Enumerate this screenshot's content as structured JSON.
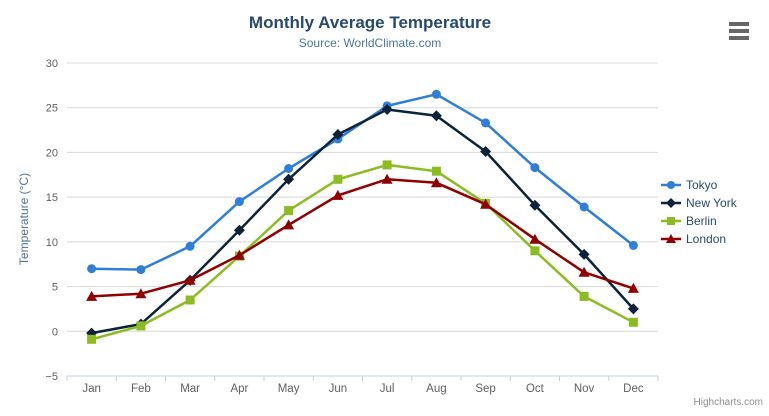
{
  "chart_data": {
    "type": "line",
    "title": "Monthly Average Temperature",
    "subtitle": "Source: WorldClimate.com",
    "xlabel": "",
    "ylabel": "Temperature (°C)",
    "categories": [
      "Jan",
      "Feb",
      "Mar",
      "Apr",
      "May",
      "Jun",
      "Jul",
      "Aug",
      "Sep",
      "Oct",
      "Nov",
      "Dec"
    ],
    "ylim": [
      -5,
      30
    ],
    "yticks": [
      -5,
      0,
      5,
      10,
      15,
      20,
      25,
      30
    ],
    "grid": true,
    "legend_position": "right",
    "series": [
      {
        "name": "Tokyo",
        "color": "#2f7ed8",
        "marker": "circle",
        "values": [
          7.0,
          6.9,
          9.5,
          14.5,
          18.2,
          21.5,
          25.2,
          26.5,
          23.3,
          18.3,
          13.9,
          9.6
        ]
      },
      {
        "name": "New York",
        "color": "#0d233a",
        "marker": "diamond",
        "values": [
          -0.2,
          0.8,
          5.7,
          11.3,
          17.0,
          22.0,
          24.8,
          24.1,
          20.1,
          14.1,
          8.6,
          2.5
        ]
      },
      {
        "name": "Berlin",
        "color": "#8bbc21",
        "marker": "square",
        "values": [
          -0.9,
          0.6,
          3.5,
          8.4,
          13.5,
          17.0,
          18.6,
          17.9,
          14.3,
          9.0,
          3.9,
          1.0
        ]
      },
      {
        "name": "London",
        "color": "#910000",
        "marker": "triangle",
        "values": [
          3.9,
          4.2,
          5.7,
          8.5,
          11.9,
          15.2,
          17.0,
          16.6,
          14.2,
          10.3,
          6.6,
          4.8
        ]
      }
    ],
    "theme": {
      "title_color": "#274b6d",
      "subtitle_color": "#4d759e",
      "axis_title_color": "#4d759e",
      "tick_label_color": "#606060",
      "gridline_color": "#d8d8d8",
      "axis_line_color": "#c0d0e0",
      "legend_text_color": "#274b6d",
      "credits_color": "#909090",
      "export_icon_color": "#666666",
      "background_color": "#ffffff"
    }
  },
  "ui": {
    "credits": "Highcharts.com",
    "export_menu_icon": "hamburger-icon"
  }
}
